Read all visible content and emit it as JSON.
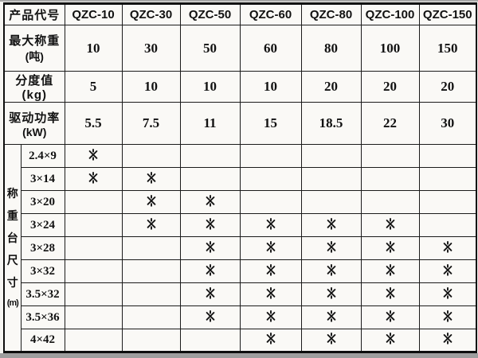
{
  "header": {
    "product_label": "产品代号",
    "models": [
      "QZC-10",
      "QZC-30",
      "QZC-50",
      "QZC-60",
      "QZC-80",
      "QZC-100",
      "QZC-150"
    ]
  },
  "specs": [
    {
      "label": "最大称重",
      "unit": "(吨)",
      "values": [
        "10",
        "30",
        "50",
        "60",
        "80",
        "100",
        "150"
      ]
    },
    {
      "label": "分度值(kg)",
      "unit": "",
      "values": [
        "5",
        "10",
        "10",
        "10",
        "20",
        "20",
        "20"
      ]
    },
    {
      "label": "驱动功率",
      "unit": "(kW)",
      "values": [
        "5.5",
        "7.5",
        "11",
        "15",
        "18.5",
        "22",
        "30"
      ]
    }
  ],
  "platform": {
    "label": "称重台尺寸(m)",
    "vertical_label": [
      "称",
      "重",
      "台",
      "尺",
      "寸",
      "(m)"
    ],
    "mark_symbol": "※",
    "rows": [
      {
        "size": "2.4×9",
        "marks": [
          1,
          0,
          0,
          0,
          0,
          0,
          0
        ]
      },
      {
        "size": "3×14",
        "marks": [
          1,
          1,
          0,
          0,
          0,
          0,
          0
        ]
      },
      {
        "size": "3×20",
        "marks": [
          0,
          1,
          1,
          0,
          0,
          0,
          0
        ]
      },
      {
        "size": "3×24",
        "marks": [
          0,
          1,
          1,
          1,
          1,
          1,
          0
        ]
      },
      {
        "size": "3×28",
        "marks": [
          0,
          0,
          1,
          1,
          1,
          1,
          1
        ]
      },
      {
        "size": "3×32",
        "marks": [
          0,
          0,
          1,
          1,
          1,
          1,
          1
        ]
      },
      {
        "size": "3.5×32",
        "marks": [
          0,
          0,
          1,
          1,
          1,
          1,
          1
        ]
      },
      {
        "size": "3.5×36",
        "marks": [
          0,
          0,
          1,
          1,
          1,
          1,
          1
        ]
      },
      {
        "size": "4×42",
        "marks": [
          0,
          0,
          0,
          1,
          1,
          1,
          1
        ]
      }
    ]
  }
}
